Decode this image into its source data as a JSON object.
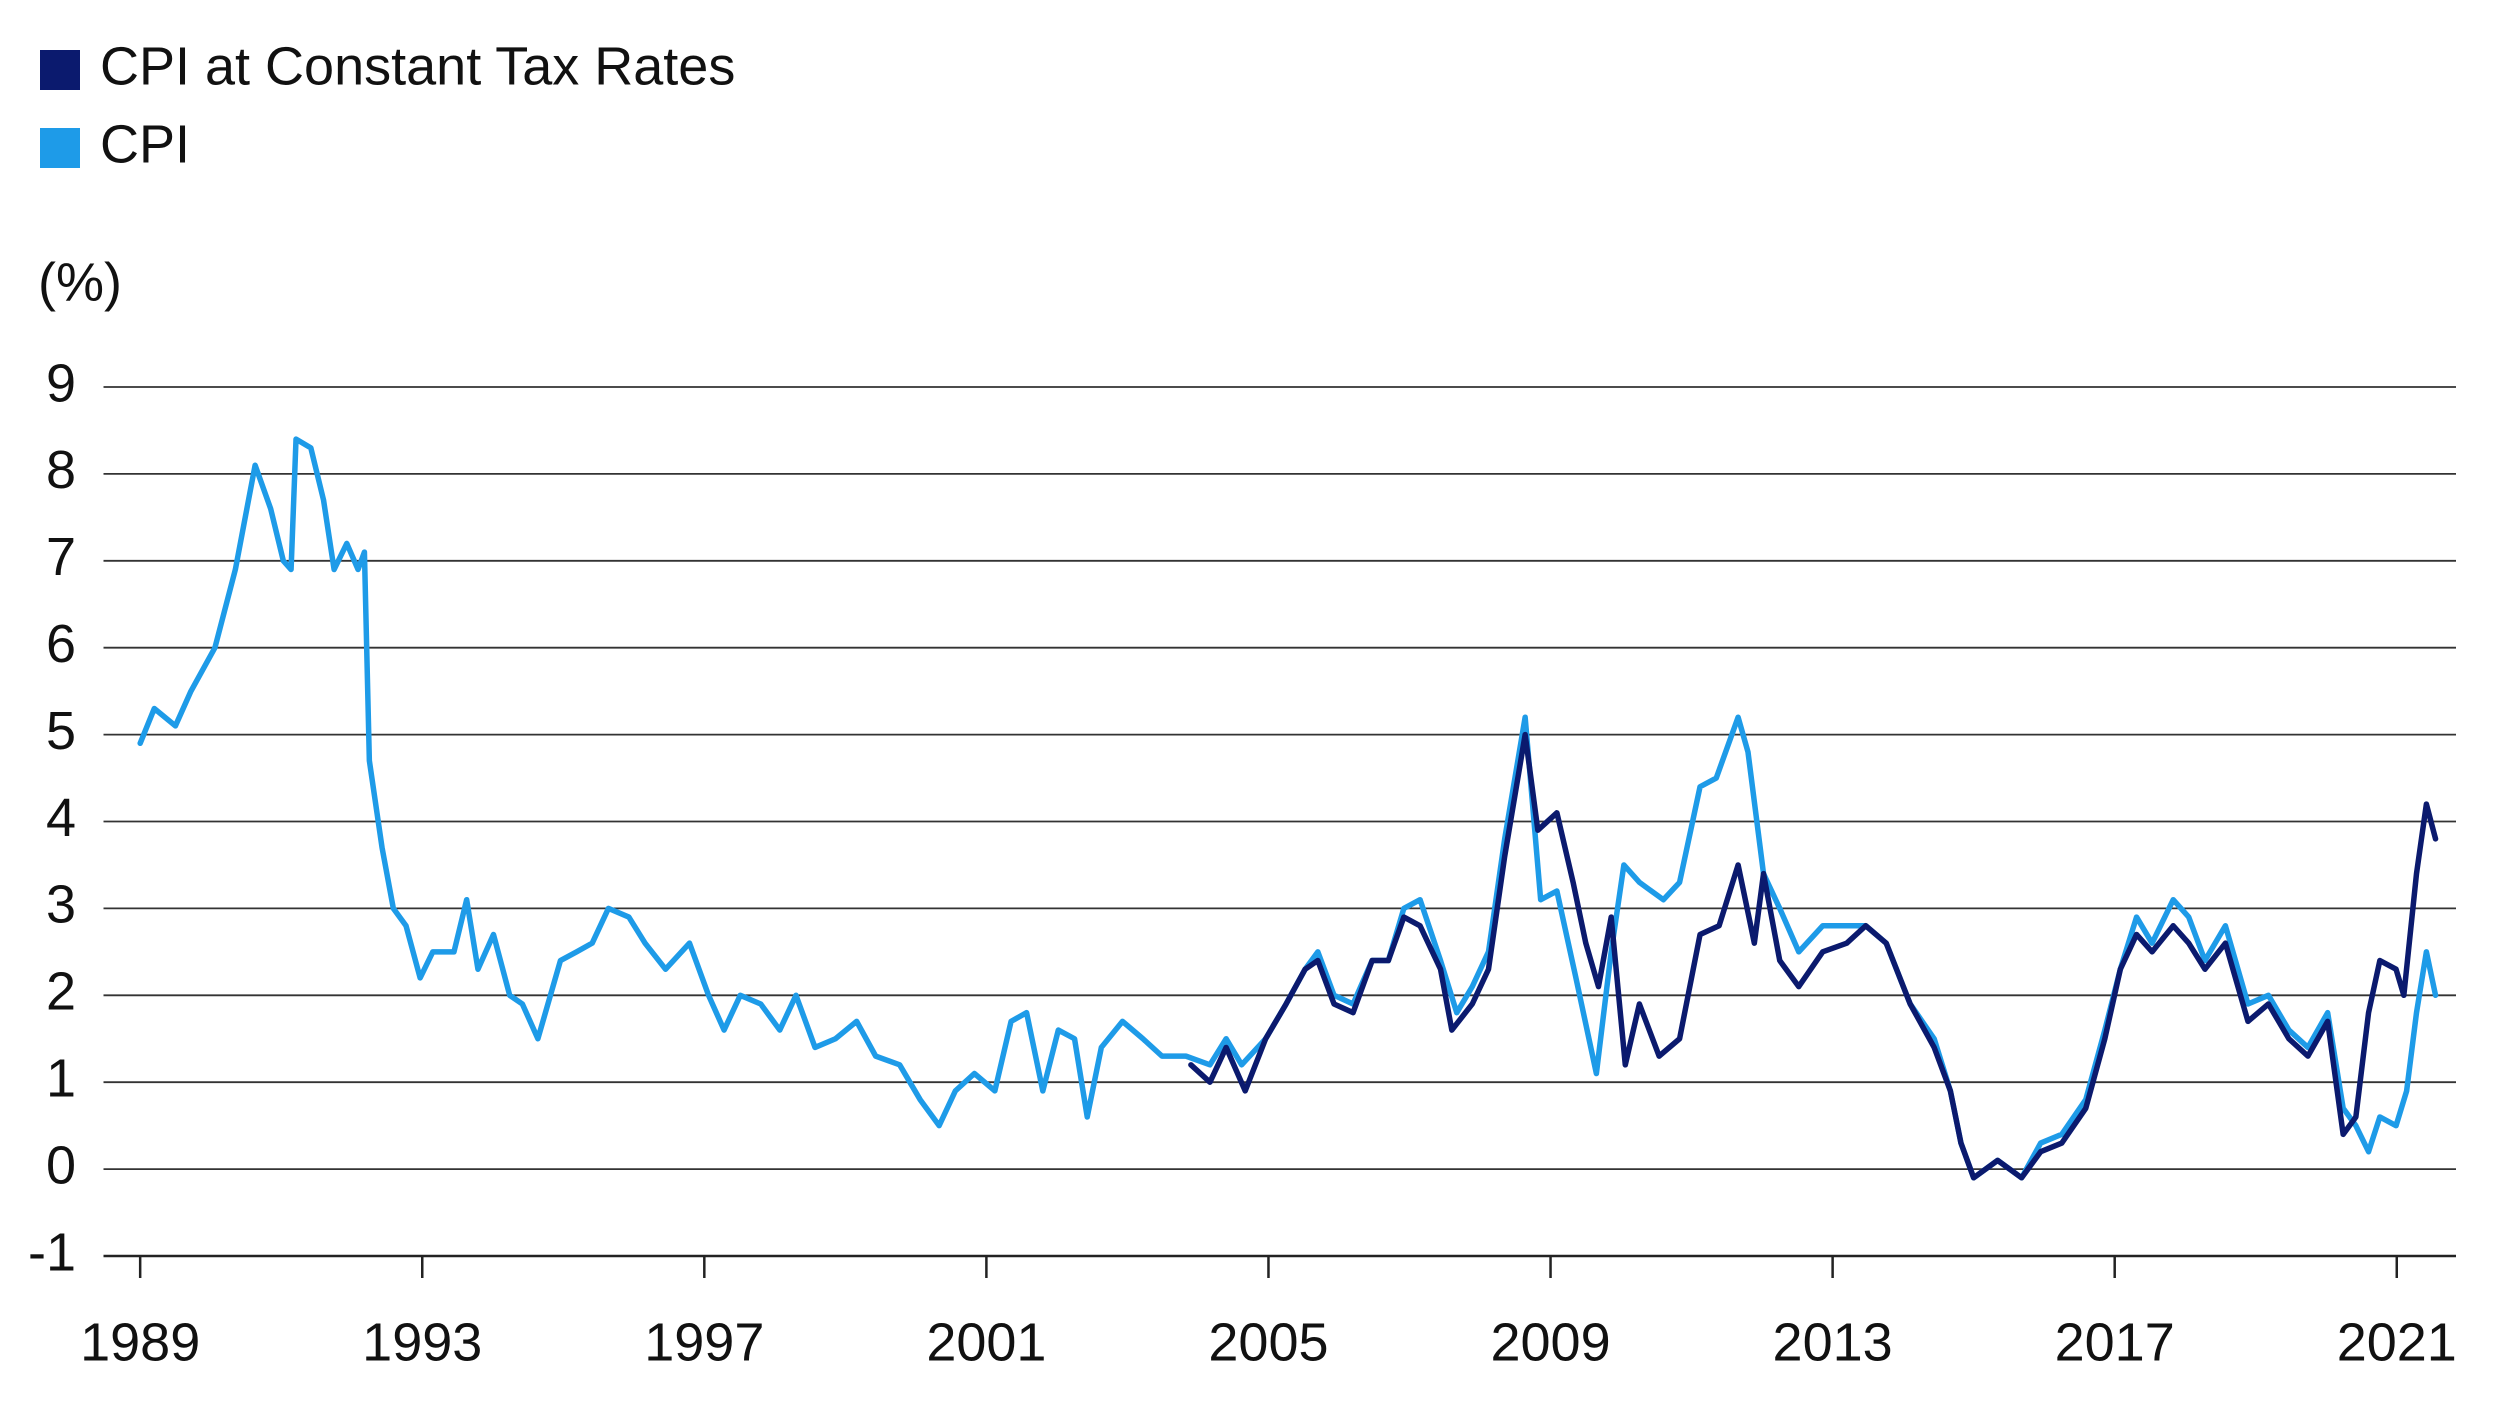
{
  "chart_data": {
    "type": "line",
    "y_label": "(%)",
    "xlim": [
      1988.48,
      2021.84
    ],
    "xticks": [
      1989,
      1993,
      1997,
      2001,
      2005,
      2009,
      2013,
      2017,
      2021
    ],
    "ylim": [
      -1,
      9
    ],
    "yticks": [
      -1,
      0,
      1,
      2,
      3,
      4,
      5,
      6,
      7,
      8,
      9
    ],
    "grid": true,
    "legend": "top-left",
    "series": [
      {
        "name": "CPI at Constant Tax Rates",
        "color": "#0b1a6e",
        "x": [
          2003.9,
          2004.17,
          2004.4,
          2004.67,
          2004.96,
          2005.25,
          2005.52,
          2005.7,
          2005.93,
          2006.2,
          2006.47,
          2006.7,
          2006.92,
          2007.15,
          2007.44,
          2007.6,
          2007.89,
          2008.12,
          2008.35,
          2008.64,
          2008.82,
          2009.09,
          2009.32,
          2009.5,
          2009.68,
          2009.86,
          2010.06,
          2010.26,
          2010.54,
          2010.83,
          2011.12,
          2011.39,
          2011.66,
          2011.89,
          2012.02,
          2012.25,
          2012.52,
          2012.86,
          2013.2,
          2013.47,
          2013.76,
          2014.1,
          2014.44,
          2014.67,
          2014.82,
          2015.0,
          2015.34,
          2015.68,
          2015.95,
          2016.25,
          2016.59,
          2016.86,
          2017.08,
          2017.31,
          2017.53,
          2017.83,
          2018.05,
          2018.28,
          2018.57,
          2018.89,
          2019.18,
          2019.47,
          2019.74,
          2020.02,
          2020.24,
          2020.42,
          2020.6,
          2020.76,
          2020.99,
          2021.1,
          2021.28,
          2021.42,
          2021.55
        ],
        "values": [
          1.2,
          1.0,
          1.4,
          0.9,
          1.5,
          1.9,
          2.3,
          2.4,
          1.9,
          1.8,
          2.4,
          2.4,
          2.9,
          2.8,
          2.3,
          1.6,
          1.9,
          2.3,
          3.6,
          5.0,
          3.9,
          4.1,
          3.3,
          2.6,
          2.1,
          2.9,
          1.2,
          1.9,
          1.3,
          1.5,
          2.7,
          2.8,
          3.5,
          2.6,
          3.4,
          2.4,
          2.1,
          2.5,
          2.6,
          2.8,
          2.6,
          1.9,
          1.4,
          0.9,
          0.3,
          -0.1,
          0.1,
          -0.1,
          0.2,
          0.3,
          0.7,
          1.5,
          2.3,
          2.7,
          2.5,
          2.8,
          2.6,
          2.3,
          2.6,
          1.7,
          1.9,
          1.5,
          1.3,
          1.7,
          0.4,
          0.6,
          1.8,
          2.4,
          2.3,
          2.0,
          3.4,
          4.2,
          3.8
        ]
      },
      {
        "name": "CPI",
        "color": "#1e9be8",
        "x": [
          1989.0,
          1989.2,
          1989.5,
          1989.72,
          1990.06,
          1990.35,
          1990.63,
          1990.85,
          1991.03,
          1991.14,
          1991.21,
          1991.42,
          1991.6,
          1991.75,
          1991.93,
          1992.09,
          1992.18,
          1992.25,
          1992.43,
          1992.59,
          1992.77,
          1992.97,
          1993.15,
          1993.45,
          1993.63,
          1993.79,
          1994.01,
          1994.24,
          1994.42,
          1994.64,
          1994.96,
          1995.19,
          1995.41,
          1995.64,
          1995.93,
          1996.16,
          1996.45,
          1996.79,
          1997.06,
          1997.28,
          1997.51,
          1997.8,
          1998.07,
          1998.3,
          1998.57,
          1998.86,
          1999.16,
          1999.43,
          1999.77,
          2000.06,
          2000.33,
          2000.56,
          2000.83,
          2001.12,
          2001.35,
          2001.57,
          2001.8,
          2002.02,
          2002.25,
          2002.43,
          2002.63,
          2002.93,
          2003.22,
          2003.49,
          2003.83,
          2004.17,
          2004.4,
          2004.62,
          2004.96,
          2005.25,
          2005.52,
          2005.7,
          2005.93,
          2006.2,
          2006.47,
          2006.7,
          2006.92,
          2007.15,
          2007.44,
          2007.67,
          2007.89,
          2008.12,
          2008.35,
          2008.64,
          2008.86,
          2009.09,
          2009.36,
          2009.65,
          2009.86,
          2010.04,
          2010.26,
          2010.6,
          2010.83,
          2011.12,
          2011.35,
          2011.66,
          2011.8,
          2012.02,
          2012.25,
          2012.52,
          2012.86,
          2013.2,
          2013.47,
          2013.76,
          2014.1,
          2014.44,
          2014.67,
          2014.82,
          2015.0,
          2015.34,
          2015.68,
          2015.95,
          2016.25,
          2016.59,
          2016.86,
          2017.08,
          2017.31,
          2017.53,
          2017.83,
          2018.05,
          2018.28,
          2018.57,
          2018.89,
          2019.18,
          2019.47,
          2019.74,
          2020.02,
          2020.24,
          2020.42,
          2020.6,
          2020.76,
          2020.99,
          2021.14,
          2021.28,
          2021.42,
          2021.55
        ],
        "values": [
          4.9,
          5.3,
          5.1,
          5.5,
          6.0,
          6.9,
          8.1,
          7.6,
          7.0,
          6.9,
          8.4,
          8.3,
          7.7,
          6.9,
          7.2,
          6.9,
          7.1,
          4.7,
          3.7,
          3.0,
          2.8,
          2.2,
          2.5,
          2.5,
          3.1,
          2.3,
          2.7,
          2.0,
          1.9,
          1.5,
          2.4,
          2.5,
          2.6,
          3.0,
          2.9,
          2.6,
          2.3,
          2.6,
          2.0,
          1.6,
          2.0,
          1.9,
          1.6,
          2.0,
          1.4,
          1.5,
          1.7,
          1.3,
          1.2,
          0.8,
          0.5,
          0.9,
          1.1,
          0.9,
          1.7,
          1.8,
          0.9,
          1.6,
          1.5,
          0.6,
          1.4,
          1.7,
          1.5,
          1.3,
          1.3,
          1.2,
          1.5,
          1.2,
          1.5,
          1.9,
          2.3,
          2.5,
          2.0,
          1.9,
          2.4,
          2.4,
          3.0,
          3.1,
          2.4,
          1.8,
          2.1,
          2.5,
          3.8,
          5.2,
          3.1,
          3.2,
          2.2,
          1.1,
          2.5,
          3.5,
          3.3,
          3.1,
          3.3,
          4.4,
          4.5,
          5.2,
          4.8,
          3.4,
          3.0,
          2.5,
          2.8,
          2.8,
          2.8,
          2.6,
          1.9,
          1.5,
          0.9,
          0.3,
          -0.1,
          0.1,
          -0.1,
          0.3,
          0.4,
          0.8,
          1.6,
          2.3,
          2.9,
          2.6,
          3.1,
          2.9,
          2.4,
          2.8,
          1.9,
          2.0,
          1.6,
          1.4,
          1.8,
          0.7,
          0.5,
          0.2,
          0.6,
          0.5,
          0.9,
          1.8,
          2.5,
          2.0
        ]
      }
    ]
  }
}
